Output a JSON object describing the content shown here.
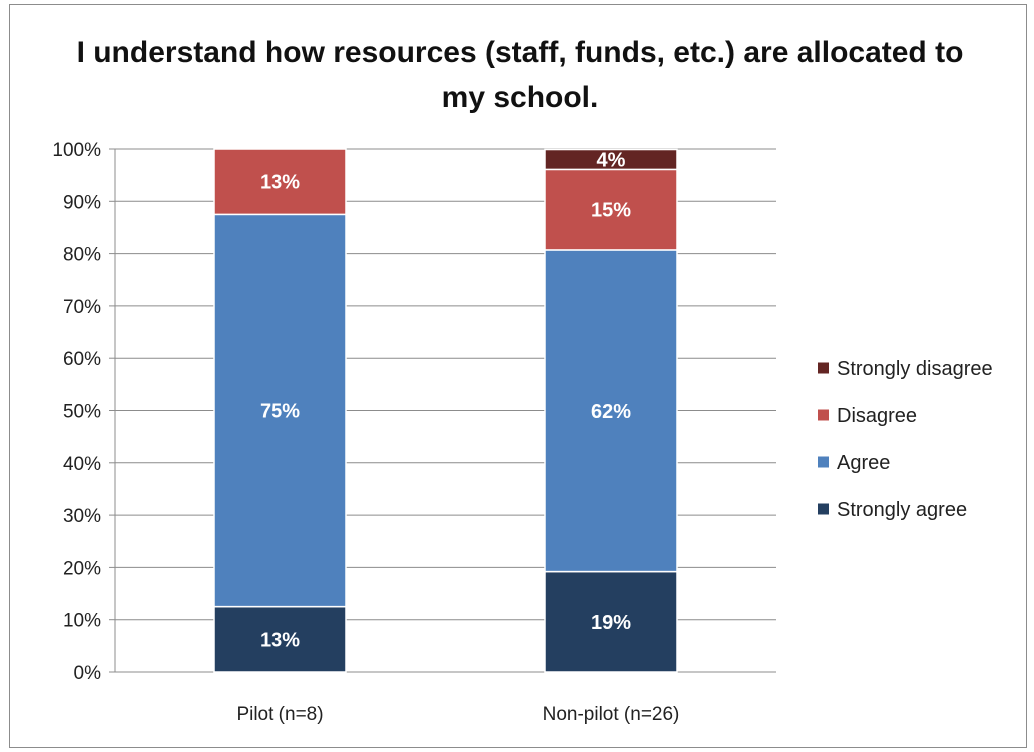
{
  "chart_data": {
    "type": "bar",
    "stacked": true,
    "title": "I understand how resources (staff, funds, etc.) are allocated to my school.",
    "categories": [
      "Pilot (n=8)",
      "Non-pilot (n=26)"
    ],
    "series": [
      {
        "name": "Strongly agree",
        "values": [
          12.5,
          19.2
        ],
        "labels": [
          "13%",
          "19%"
        ],
        "color": "#243f60"
      },
      {
        "name": "Agree",
        "values": [
          75,
          61.5
        ],
        "labels": [
          "75%",
          "62%"
        ],
        "color": "#4f81bd"
      },
      {
        "name": "Disagree",
        "values": [
          12.5,
          15.4
        ],
        "labels": [
          "13%",
          "15%"
        ],
        "color": "#c0504d"
      },
      {
        "name": "Strongly disagree",
        "values": [
          0,
          3.8
        ],
        "labels": [
          "",
          "4%"
        ],
        "color": "#632523"
      }
    ],
    "ylim": [
      0,
      100
    ],
    "yticks": [
      "0%",
      "10%",
      "20%",
      "30%",
      "40%",
      "50%",
      "60%",
      "70%",
      "80%",
      "90%",
      "100%"
    ],
    "legend_order": [
      "Strongly disagree",
      "Disagree",
      "Agree",
      "Strongly agree"
    ],
    "legend_position": "right",
    "grid": true,
    "gridline_color": "#8c8c8c"
  }
}
